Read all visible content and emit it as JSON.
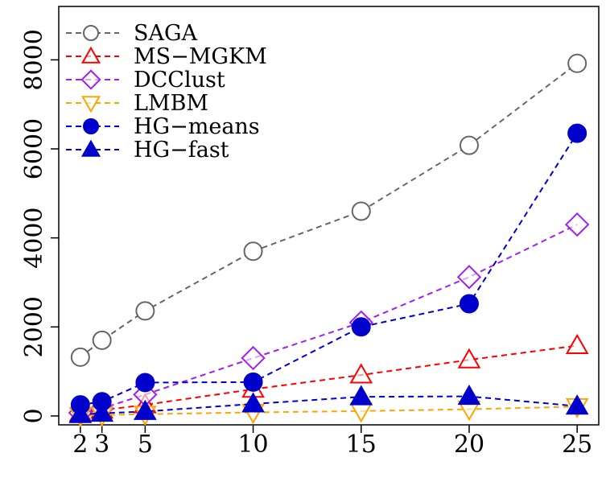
{
  "chart_data": {
    "type": "line",
    "title": "",
    "xlabel": "",
    "ylabel": "",
    "x": [
      2,
      3,
      5,
      10,
      15,
      20,
      25
    ],
    "x_ticks": [
      "2",
      "3",
      "5",
      "10",
      "15",
      "20",
      "25"
    ],
    "y_ticks": [
      "0",
      "2000",
      "4000",
      "6000",
      "8000"
    ],
    "xlim": [
      1,
      26
    ],
    "ylim": [
      -200,
      9200
    ],
    "grid": false,
    "legend_position": "top-left",
    "series": [
      {
        "name": "SAGA",
        "marker": "circle-open",
        "color": "#666666",
        "values": [
          1320,
          1700,
          2360,
          3700,
          4600,
          6080,
          7920
        ]
      },
      {
        "name": "MS−MGKM",
        "marker": "triangle-up-open",
        "color": "#ff0000",
        "values": [
          60,
          130,
          250,
          600,
          920,
          1260,
          1580
        ]
      },
      {
        "name": "DCClust",
        "marker": "diamond-open",
        "color": "#a020f0",
        "values": [
          70,
          170,
          480,
          1300,
          2100,
          3120,
          4300
        ]
      },
      {
        "name": "LMBM",
        "marker": "triangle-down-open",
        "color": "#ffa500",
        "values": [
          10,
          20,
          40,
          80,
          110,
          150,
          210
        ]
      },
      {
        "name": "HG−means",
        "marker": "circle-filled",
        "color": "#0000cd",
        "values": [
          250,
          320,
          750,
          760,
          2000,
          2520,
          6350
        ]
      },
      {
        "name": "HG−fast",
        "marker": "triangle-up-filled",
        "color": "#0000cd",
        "values": [
          30,
          60,
          100,
          270,
          430,
          440,
          220
        ]
      }
    ]
  }
}
